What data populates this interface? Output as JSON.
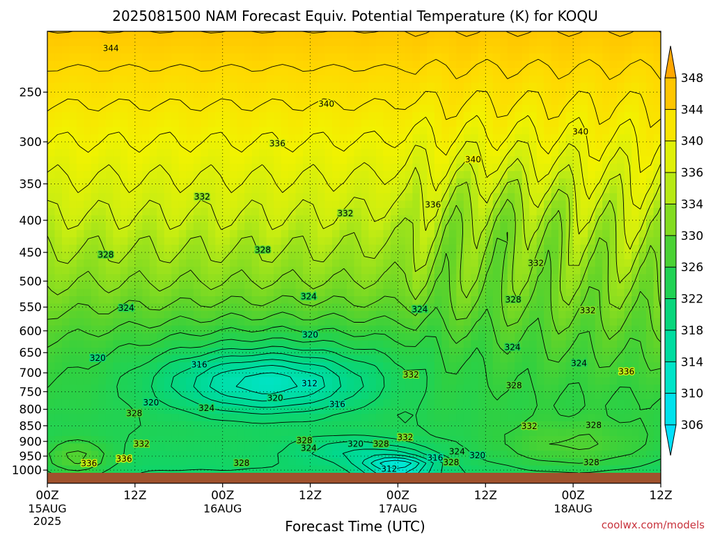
{
  "chart_data": {
    "type": "heatmap",
    "title": "2025081500 NAM Forecast Equiv. Potential Temperature (K) for KOQU",
    "xlabel": "Forecast Time (UTC)",
    "ylabel": "",
    "credit": "coolwx.com/models",
    "y_axis": {
      "scale": "log-pressure",
      "range": [
        1010,
        200
      ],
      "ticks": [
        250,
        300,
        350,
        400,
        450,
        500,
        550,
        600,
        650,
        700,
        750,
        800,
        850,
        900,
        950,
        1000
      ]
    },
    "x_axis": {
      "range_hours": [
        0,
        84
      ],
      "ticks": [
        {
          "hour": 0,
          "label": "00Z",
          "date": "15AUG",
          "year": "2025"
        },
        {
          "hour": 12,
          "label": "12Z"
        },
        {
          "hour": 24,
          "label": "00Z",
          "date": "16AUG"
        },
        {
          "hour": 36,
          "label": "12Z"
        },
        {
          "hour": 48,
          "label": "00Z",
          "date": "17AUG"
        },
        {
          "hour": 60,
          "label": "12Z"
        },
        {
          "hour": 72,
          "label": "00Z",
          "date": "18AUG"
        },
        {
          "hour": 84,
          "label": "12Z"
        }
      ]
    },
    "colorbar": {
      "unit": "K",
      "levels": [
        306,
        310,
        314,
        318,
        322,
        326,
        330,
        334,
        336,
        340,
        344,
        348
      ],
      "stops": [
        {
          "v": 304,
          "c": "#00e4ff"
        },
        {
          "v": 306,
          "c": "#00dcf8"
        },
        {
          "v": 310,
          "c": "#00e8e0"
        },
        {
          "v": 314,
          "c": "#00e0b0"
        },
        {
          "v": 318,
          "c": "#00d890"
        },
        {
          "v": 322,
          "c": "#10d468"
        },
        {
          "v": 326,
          "c": "#30d040"
        },
        {
          "v": 330,
          "c": "#64d428"
        },
        {
          "v": 334,
          "c": "#a2e41a"
        },
        {
          "v": 336,
          "c": "#ccee10"
        },
        {
          "v": 340,
          "c": "#f2f200"
        },
        {
          "v": 344,
          "c": "#ffd800"
        },
        {
          "v": 348,
          "c": "#ffb400"
        },
        {
          "v": 352,
          "c": "#ff9a00"
        }
      ]
    },
    "ground_color": "#a0522d",
    "contour_interval_K": 2,
    "contour_labels": [
      {
        "t": 8.7,
        "p": 213,
        "v": "344"
      },
      {
        "t": 38.2,
        "p": 261,
        "v": "340"
      },
      {
        "t": 31.5,
        "p": 302,
        "v": "336"
      },
      {
        "t": 21.2,
        "p": 367,
        "v": "332"
      },
      {
        "t": 40.8,
        "p": 390,
        "v": "332"
      },
      {
        "t": 52.8,
        "p": 378,
        "v": "336"
      },
      {
        "t": 58.3,
        "p": 320,
        "v": "340"
      },
      {
        "t": 73.0,
        "p": 289,
        "v": "340"
      },
      {
        "t": 66.9,
        "p": 468,
        "v": "332"
      },
      {
        "t": 8.0,
        "p": 454,
        "v": "328"
      },
      {
        "t": 29.5,
        "p": 446,
        "v": "328"
      },
      {
        "t": 10.8,
        "p": 552,
        "v": "324"
      },
      {
        "t": 35.8,
        "p": 529,
        "v": "324"
      },
      {
        "t": 51.0,
        "p": 555,
        "v": "324"
      },
      {
        "t": 63.8,
        "p": 535,
        "v": "328"
      },
      {
        "t": 74.0,
        "p": 557,
        "v": "332"
      },
      {
        "t": 36.0,
        "p": 609,
        "v": "320"
      },
      {
        "t": 6.9,
        "p": 663,
        "v": "320"
      },
      {
        "t": 63.7,
        "p": 637,
        "v": "324"
      },
      {
        "t": 72.8,
        "p": 676,
        "v": "324"
      },
      {
        "t": 79.3,
        "p": 697,
        "v": "336"
      },
      {
        "t": 20.8,
        "p": 679,
        "v": "316"
      },
      {
        "t": 35.9,
        "p": 728,
        "v": "312"
      },
      {
        "t": 31.2,
        "p": 768,
        "v": "320"
      },
      {
        "t": 39.7,
        "p": 786,
        "v": "316"
      },
      {
        "t": 14.2,
        "p": 781,
        "v": "320"
      },
      {
        "t": 21.8,
        "p": 797,
        "v": "324"
      },
      {
        "t": 11.9,
        "p": 812,
        "v": "328"
      },
      {
        "t": 49.8,
        "p": 705,
        "v": "332"
      },
      {
        "t": 63.9,
        "p": 733,
        "v": "328"
      },
      {
        "t": 66.0,
        "p": 851,
        "v": "332"
      },
      {
        "t": 74.8,
        "p": 848,
        "v": "328"
      },
      {
        "t": 12.9,
        "p": 908,
        "v": "332"
      },
      {
        "t": 35.2,
        "p": 897,
        "v": "328"
      },
      {
        "t": 35.8,
        "p": 922,
        "v": "324"
      },
      {
        "t": 42.2,
        "p": 909,
        "v": "320"
      },
      {
        "t": 45.7,
        "p": 908,
        "v": "328"
      },
      {
        "t": 49.0,
        "p": 887,
        "v": "332"
      },
      {
        "t": 56.1,
        "p": 935,
        "v": "324"
      },
      {
        "t": 53.1,
        "p": 956,
        "v": "316"
      },
      {
        "t": 58.9,
        "p": 948,
        "v": "320"
      },
      {
        "t": 55.3,
        "p": 972,
        "v": "328"
      },
      {
        "t": 46.8,
        "p": 996,
        "v": "312"
      },
      {
        "t": 26.6,
        "p": 974,
        "v": "328"
      },
      {
        "t": 5.7,
        "p": 976,
        "v": "336"
      },
      {
        "t": 10.5,
        "p": 960,
        "v": "336"
      },
      {
        "t": 74.5,
        "p": 972,
        "v": "328"
      }
    ]
  }
}
